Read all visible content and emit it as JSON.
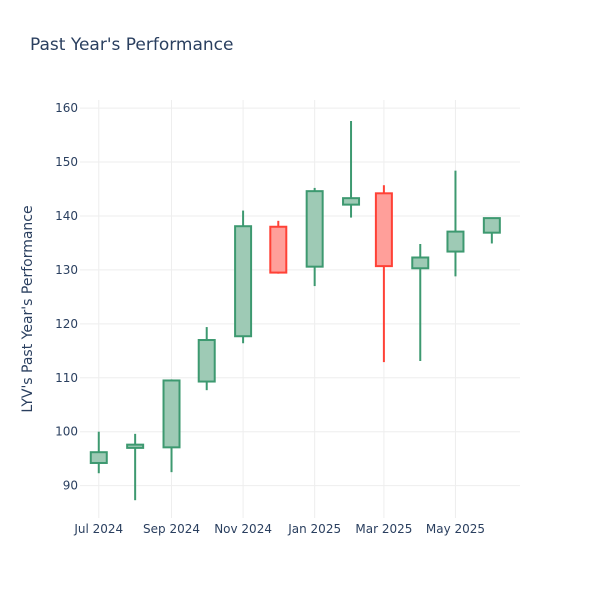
{
  "chart_data": {
    "type": "candlestick",
    "title": "Past Year's Performance",
    "xlabel": "",
    "ylabel": "LYV's Past Year's Performance",
    "ylim": [
      84,
      161.5
    ],
    "xlim": [
      "2024-06-15",
      "2025-06-25"
    ],
    "grid": true,
    "legend": "none",
    "yticks": [
      90,
      100,
      110,
      120,
      130,
      140,
      150,
      160
    ],
    "xticks": [
      {
        "date": "2024-07-01",
        "label": "Jul 2024"
      },
      {
        "date": "2024-09-01",
        "label": "Sep 2024"
      },
      {
        "date": "2024-11-01",
        "label": "Nov 2024"
      },
      {
        "date": "2025-01-01",
        "label": "Jan 2025"
      },
      {
        "date": "2025-03-01",
        "label": "Mar 2025"
      },
      {
        "date": "2025-05-01",
        "label": "May 2025"
      }
    ],
    "colors": {
      "increasing_line": "#3d9970",
      "increasing_fill": "#9ecab5",
      "decreasing_line": "#ff4136",
      "decreasing_fill": "#ff9f9a",
      "grid": "#eeeeee",
      "text": "#2a3f5f"
    },
    "candles": [
      {
        "date": "2024-07-01",
        "open": 94.2,
        "high": 100.0,
        "low": 92.3,
        "close": 96.2
      },
      {
        "date": "2024-08-01",
        "open": 97.0,
        "high": 99.6,
        "low": 87.3,
        "close": 97.6
      },
      {
        "date": "2024-09-01",
        "open": 97.1,
        "high": 109.7,
        "low": 92.5,
        "close": 109.5
      },
      {
        "date": "2024-10-01",
        "open": 109.3,
        "high": 119.4,
        "low": 107.7,
        "close": 117.0
      },
      {
        "date": "2024-11-01",
        "open": 117.7,
        "high": 141.0,
        "low": 116.4,
        "close": 138.1
      },
      {
        "date": "2024-12-01",
        "open": 138.0,
        "high": 139.1,
        "low": 129.3,
        "close": 129.5
      },
      {
        "date": "2025-01-01",
        "open": 130.6,
        "high": 145.2,
        "low": 127.0,
        "close": 144.6
      },
      {
        "date": "2025-02-01",
        "open": 142.1,
        "high": 157.6,
        "low": 139.7,
        "close": 143.3
      },
      {
        "date": "2025-03-01",
        "open": 144.2,
        "high": 145.7,
        "low": 112.9,
        "close": 130.7
      },
      {
        "date": "2025-04-01",
        "open": 130.3,
        "high": 134.8,
        "low": 113.1,
        "close": 132.3
      },
      {
        "date": "2025-05-01",
        "open": 133.4,
        "high": 148.4,
        "low": 128.8,
        "close": 137.1
      },
      {
        "date": "2025-06-01",
        "open": 136.9,
        "high": 139.6,
        "low": 134.9,
        "close": 139.6
      }
    ]
  }
}
